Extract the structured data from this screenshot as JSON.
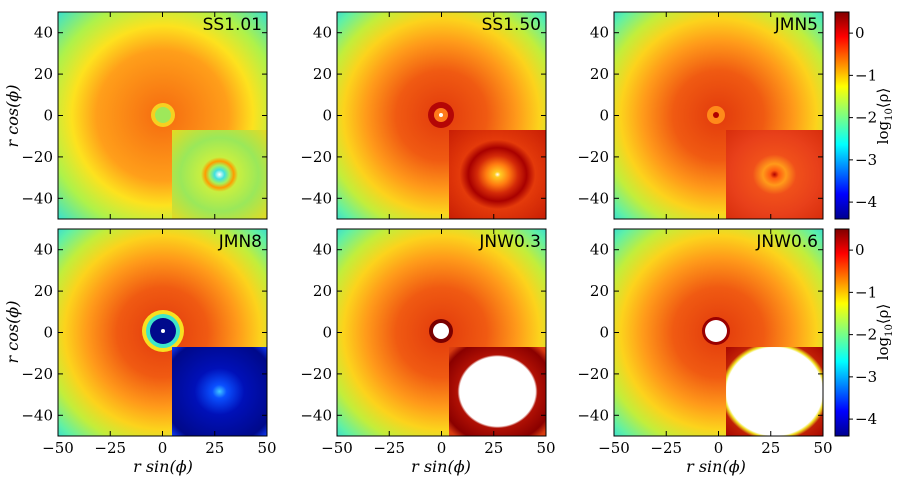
{
  "chart_data": {
    "type": "heatmap",
    "xlabel": "r sin(ϕ)",
    "ylabel": "r cos(ϕ)",
    "xlim": [
      -50,
      50
    ],
    "ylim": [
      -50,
      50
    ],
    "xticks": [
      "−50",
      "−25",
      "0",
      "25",
      "50"
    ],
    "yticks": [
      "40",
      "20",
      "0",
      "−20",
      "−40"
    ],
    "colorbar": {
      "label": "log₁₀⟨ρ⟩",
      "label_main": "log",
      "label_sub": "10",
      "label_rest": "⟨ρ⟩",
      "range": [
        -4.4,
        0.5
      ],
      "ticks": [
        "0",
        "−1",
        "−2",
        "−3",
        "−4"
      ],
      "tick_values": [
        0,
        -1,
        -2,
        -3,
        -4
      ]
    },
    "panels": [
      {
        "name": "SS1.01",
        "core": "small-cyan-ring",
        "inset": "cyan-green field with orange ring and white center"
      },
      {
        "name": "SS1.50",
        "core": "dark-red-ring",
        "inset": "red field with dark ring and orange core"
      },
      {
        "name": "JMN5",
        "core": "orange-spot",
        "inset": "red field with orange spot"
      },
      {
        "name": "JMN8",
        "core": "blue-hole",
        "inset": "dark blue field with cyan center"
      },
      {
        "name": "JNW0.3",
        "core": "white-hole-with-dark-rim",
        "inset": "large white disk with dark red ring"
      },
      {
        "name": "JNW0.6",
        "core": "white-hole",
        "inset": "large white disk on red"
      }
    ]
  }
}
